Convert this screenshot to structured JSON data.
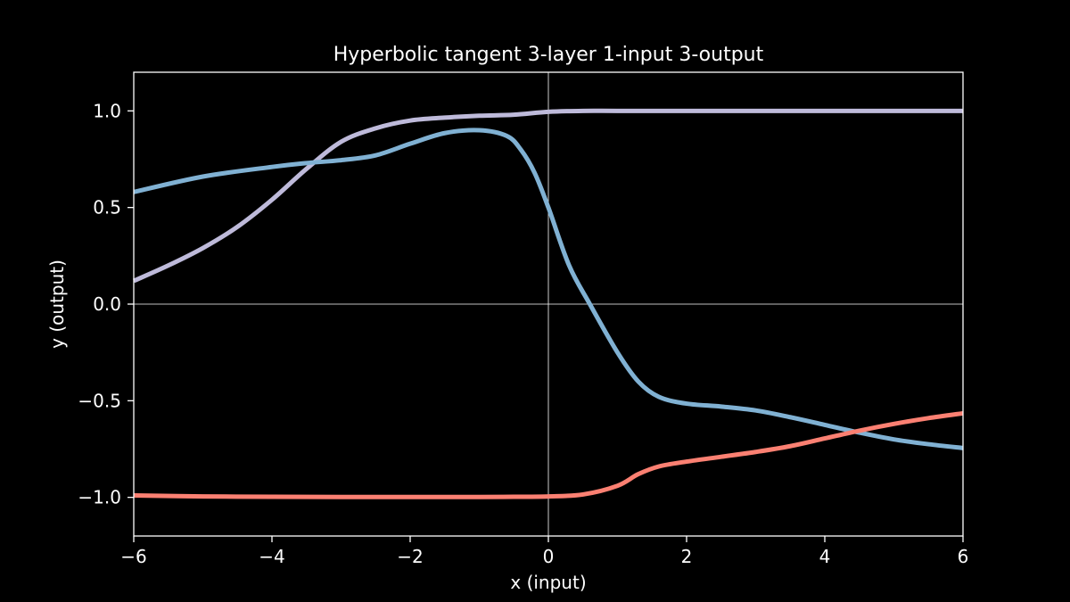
{
  "chart_data": {
    "type": "line",
    "title": "Hyperbolic tangent 3-layer 1-input 3-output",
    "xlabel": "x (input)",
    "ylabel": "y (output)",
    "xlim": [
      -6,
      6
    ],
    "ylim": [
      -1.2,
      1.2
    ],
    "x_ticks": [
      -6,
      -4,
      -2,
      0,
      2,
      4,
      6
    ],
    "x_tick_labels": [
      "−6",
      "−4",
      "−2",
      "0",
      "2",
      "4",
      "6"
    ],
    "y_ticks": [
      1.0,
      0.5,
      0.0,
      -0.5,
      -1.0
    ],
    "y_tick_labels": [
      "1.0",
      "0.5",
      "0.0",
      "−0.5",
      "−1.0"
    ],
    "grid": false,
    "zero_lines": true,
    "background": "#000000",
    "series": [
      {
        "color": "#bebada",
        "x": [
          -6,
          -5.5,
          -5,
          -4.5,
          -4,
          -3.5,
          -3,
          -2.5,
          -2,
          -1.5,
          -1,
          -0.5,
          0,
          0.5,
          1,
          2,
          3,
          4,
          5,
          6
        ],
        "y": [
          0.12,
          0.2,
          0.29,
          0.4,
          0.54,
          0.7,
          0.84,
          0.91,
          0.95,
          0.965,
          0.975,
          0.98,
          0.995,
          1.0,
          1.0,
          1.0,
          1.0,
          1.0,
          1.0,
          1.0
        ]
      },
      {
        "color": "#80b1d3",
        "x": [
          -6,
          -5,
          -4,
          -3.5,
          -3,
          -2.5,
          -2,
          -1.5,
          -1,
          -0.6,
          -0.4,
          -0.2,
          0,
          0.3,
          0.6,
          1,
          1.3,
          1.6,
          2,
          2.5,
          3,
          3.5,
          4,
          4.5,
          5,
          5.5,
          6
        ],
        "y": [
          0.58,
          0.66,
          0.71,
          0.73,
          0.745,
          0.77,
          0.83,
          0.885,
          0.9,
          0.87,
          0.8,
          0.68,
          0.5,
          0.2,
          0.0,
          -0.25,
          -0.4,
          -0.48,
          -0.515,
          -0.53,
          -0.55,
          -0.585,
          -0.625,
          -0.665,
          -0.7,
          -0.725,
          -0.745
        ]
      },
      {
        "color": "#fb8072",
        "x": [
          -6,
          -5,
          -4,
          -3,
          -2,
          -1,
          -0.5,
          0,
          0.5,
          1,
          1.3,
          1.6,
          2,
          2.5,
          3,
          3.5,
          4,
          4.5,
          5,
          5.5,
          6
        ],
        "y": [
          -0.99,
          -0.995,
          -0.997,
          -0.998,
          -0.998,
          -0.998,
          -0.997,
          -0.995,
          -0.985,
          -0.94,
          -0.88,
          -0.84,
          -0.815,
          -0.79,
          -0.765,
          -0.735,
          -0.695,
          -0.655,
          -0.62,
          -0.59,
          -0.565
        ]
      }
    ]
  }
}
